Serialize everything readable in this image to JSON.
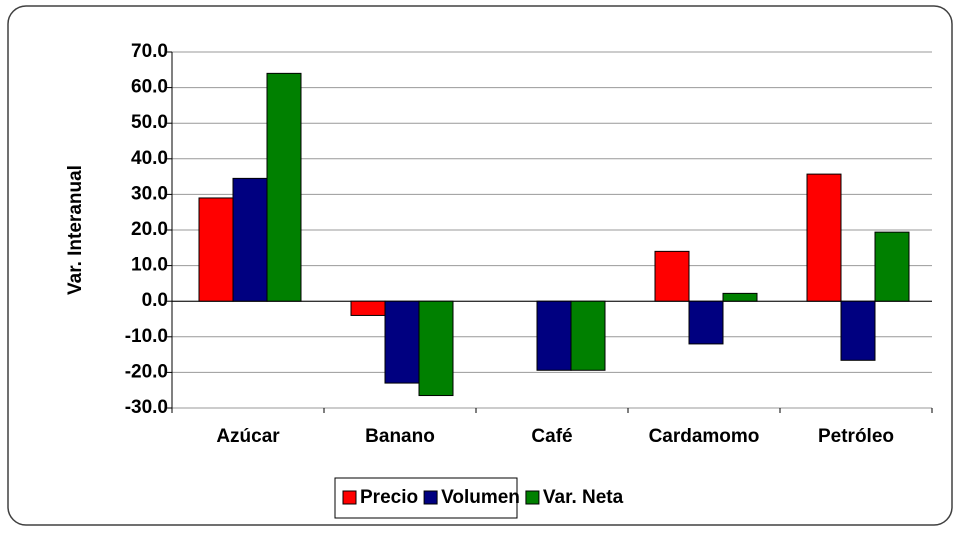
{
  "chart_data": {
    "type": "bar",
    "y_label": "Var. Interanual",
    "categories": [
      "Azúcar",
      "Banano",
      "Café",
      "Cardamomo",
      "Petróleo"
    ],
    "series": [
      {
        "name": "Precio",
        "color": "#ff0000",
        "values": [
          29,
          -4,
          0,
          14,
          35.7
        ]
      },
      {
        "name": "Volumen",
        "color": "#000080",
        "values": [
          34.5,
          -23,
          -19.4,
          -12,
          -16.6
        ]
      },
      {
        "name": "Var. Neta",
        "color": "#008000",
        "values": [
          64,
          -26.5,
          -19.4,
          2.2,
          19.4
        ]
      }
    ],
    "ylim": [
      -30,
      70
    ],
    "yticks": [
      {
        "value": -30,
        "label": "-30.0"
      },
      {
        "value": -20,
        "label": "-20.0"
      },
      {
        "value": -10,
        "label": "-10.0"
      },
      {
        "value": 0,
        "label": "0.0"
      },
      {
        "value": 10,
        "label": "10.0"
      },
      {
        "value": 20,
        "label": "20.0"
      },
      {
        "value": 30,
        "label": "30.0"
      },
      {
        "value": 40,
        "label": "40.0"
      },
      {
        "value": 50,
        "label": "50.0"
      },
      {
        "value": 60,
        "label": "60.0"
      },
      {
        "value": 70,
        "label": "70.0"
      }
    ],
    "grid": true,
    "legend": "bottom"
  }
}
